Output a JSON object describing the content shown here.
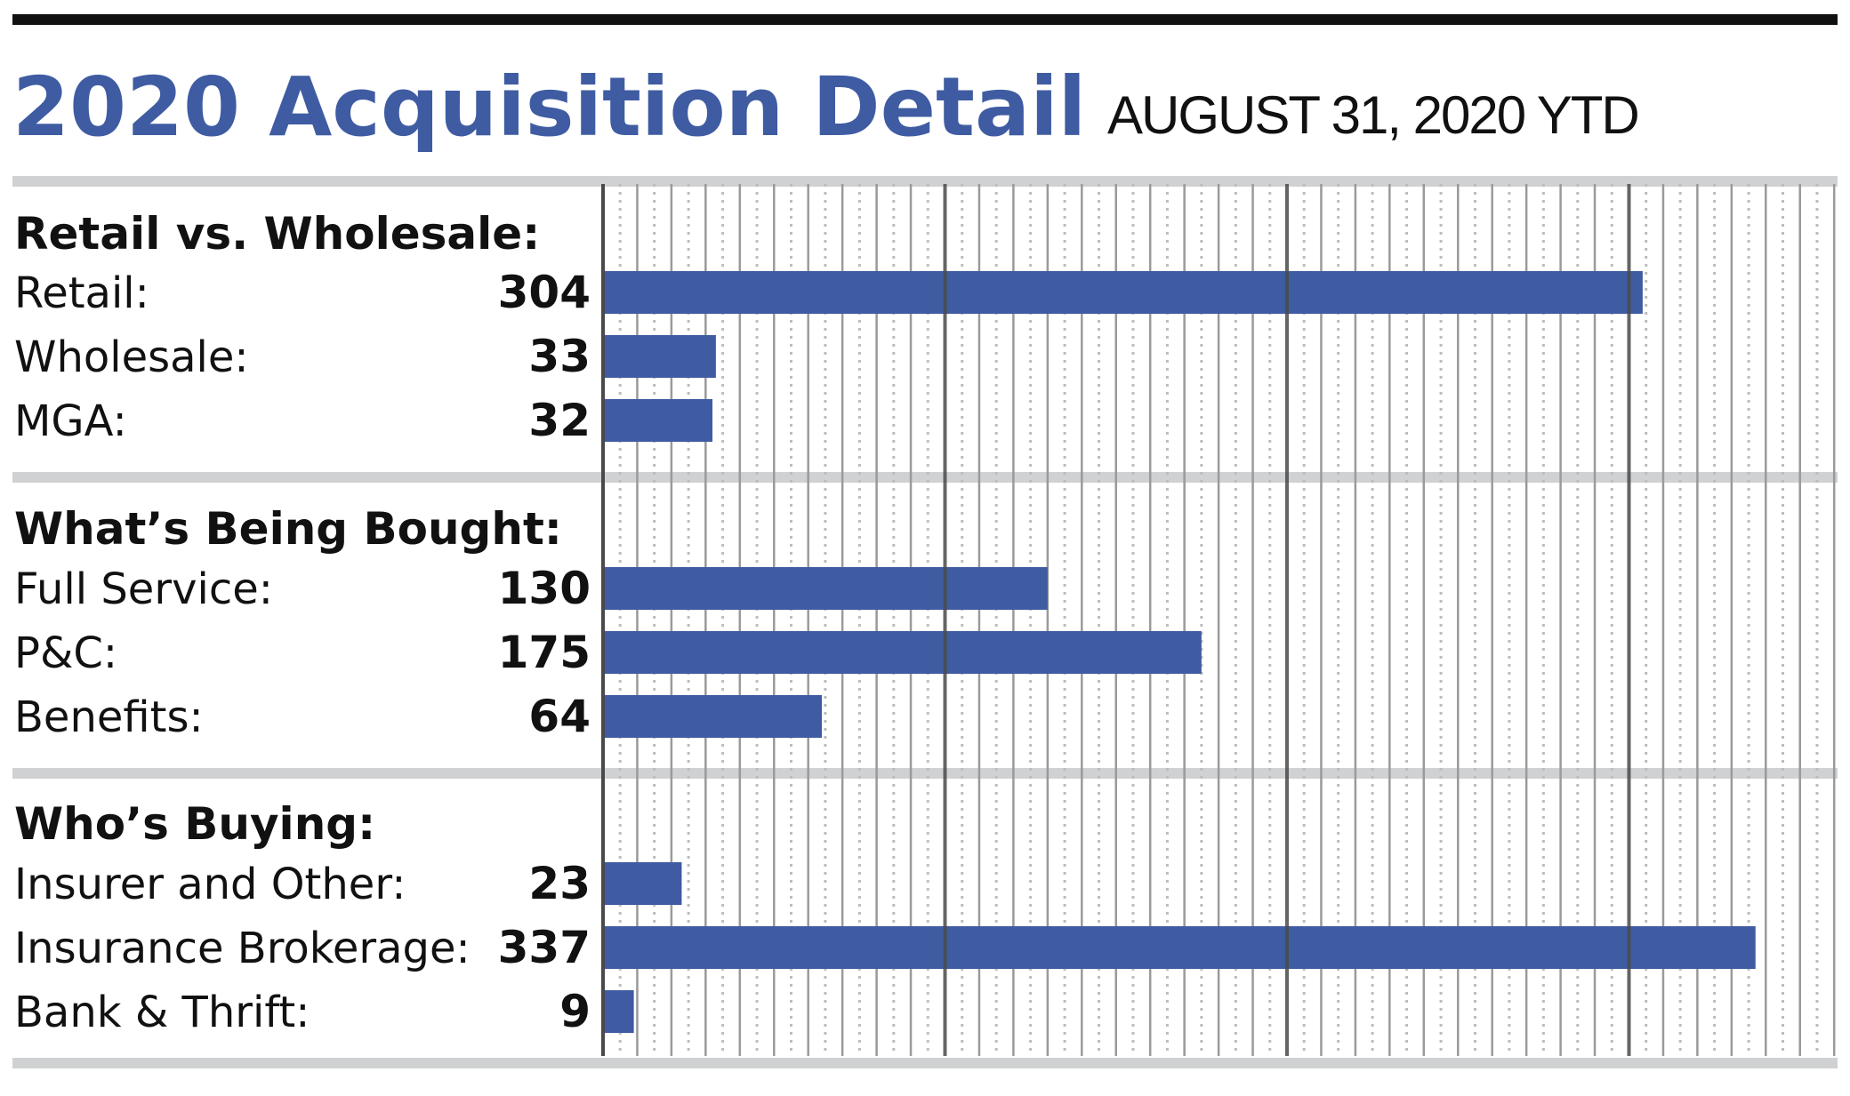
{
  "header": {
    "title": "2020 Acquisition Detail",
    "subtitle": "AUGUST 31, 2020 YTD"
  },
  "colors": {
    "bar": "#3f5ca2",
    "title": "#3f5ca2",
    "separator": "#d0d1d3",
    "major_grid": "#4a4a4a",
    "minor_grid": "#9a9a9a",
    "dotted_grid": "#bdbdbd",
    "text": "#111111"
  },
  "chart_data": {
    "type": "bar",
    "orientation": "horizontal",
    "title": "2020 Acquisition Detail",
    "subtitle": "AUGUST 31, 2020 YTD",
    "xlim": [
      0,
      360
    ],
    "grid": true,
    "grid_minor_step": 10,
    "grid_dotted_step": 5,
    "grid_major_step": 100,
    "groups": [
      {
        "title": "Retail vs. Wholesale:",
        "rows": [
          {
            "label": "Retail:",
            "value": 304
          },
          {
            "label": "Wholesale:",
            "value": 33
          },
          {
            "label": "MGA:",
            "value": 32
          }
        ]
      },
      {
        "title": "What’s Being Bought:",
        "rows": [
          {
            "label": "Full Service:",
            "value": 130
          },
          {
            "label": "P&C:",
            "value": 175
          },
          {
            "label": "Benefits:",
            "value": 64
          }
        ]
      },
      {
        "title": "Who’s Buying:",
        "rows": [
          {
            "label": "Insurer and Other:",
            "value": 23
          },
          {
            "label": "Insurance Brokerage:",
            "value": 337
          },
          {
            "label": "Bank & Thrift:",
            "value": 9
          }
        ]
      }
    ]
  }
}
